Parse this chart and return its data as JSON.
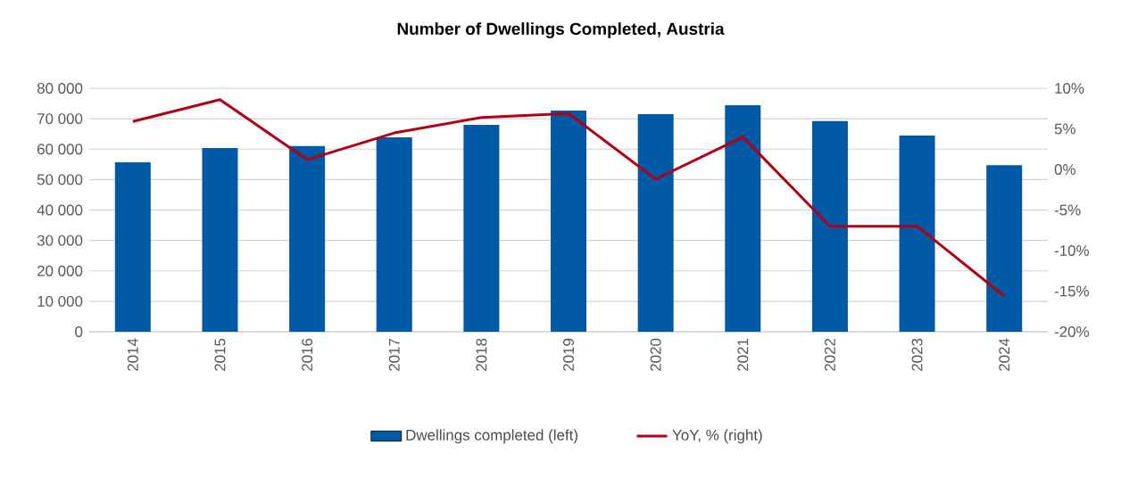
{
  "chart_data": {
    "type": "bar",
    "title": "Number of Dwellings Completed, Austria",
    "categories": [
      "2014",
      "2015",
      "2016",
      "2017",
      "2018",
      "2019",
      "2020",
      "2021",
      "2022",
      "2023",
      "2024"
    ],
    "series": [
      {
        "name": "Dwellings completed (left)",
        "color": "#005aa5",
        "values": [
          55700,
          60400,
          61000,
          63900,
          68000,
          72700,
          71500,
          74400,
          69200,
          64500,
          54700
        ]
      },
      {
        "name": "YoY, % (right)",
        "type": "line",
        "axis": "y2",
        "color": "#b30014",
        "marker": "none",
        "line_style": "solid",
        "values": [
          5.9,
          8.6,
          1.2,
          4.5,
          6.4,
          6.9,
          -1.2,
          4.0,
          -7.0,
          -7.0,
          -15.6
        ]
      }
    ],
    "ylim": [
      0,
      80000
    ],
    "yticks": [
      {
        "value": 0,
        "label": "0"
      },
      {
        "value": 10000,
        "label": "10 000"
      },
      {
        "value": 20000,
        "label": "20 000"
      },
      {
        "value": 30000,
        "label": "30 000"
      },
      {
        "value": 40000,
        "label": "40 000"
      },
      {
        "value": 50000,
        "label": "50 000"
      },
      {
        "value": 60000,
        "label": "60 000"
      },
      {
        "value": 70000,
        "label": "70 000"
      },
      {
        "value": 80000,
        "label": "80 000"
      }
    ],
    "y2lim": [
      -20,
      10
    ],
    "y2ticks": [
      {
        "value": -20,
        "label": "-20%"
      },
      {
        "value": -15,
        "label": "-15%"
      },
      {
        "value": -10,
        "label": "-10%"
      },
      {
        "value": -5,
        "label": "-5%"
      },
      {
        "value": 0,
        "label": "0%"
      },
      {
        "value": 5,
        "label": "5%"
      },
      {
        "value": 10,
        "label": "10%"
      }
    ],
    "grid": "y",
    "legend": "bottom"
  }
}
